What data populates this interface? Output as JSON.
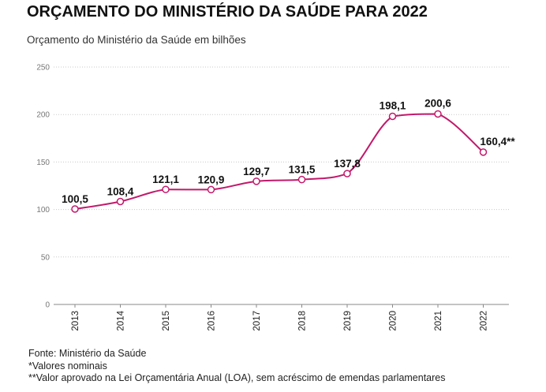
{
  "header": {
    "title": "ORÇAMENTO DO MINISTÉRIO DA SAÚDE PARA 2022",
    "subtitle": "Orçamento do Ministério da Saúde em bilhões"
  },
  "notes": {
    "source": "Fonte: Ministério da Saúde",
    "note1": "*Valores nominais",
    "note2": "**Valor aprovado na Lei Orçamentária Anual (LOA), sem acréscimo de emendas parlamentares"
  },
  "colors": {
    "line": "#c2196b",
    "grid": "#c8c8c8",
    "axis": "#888888"
  },
  "chart_data": {
    "type": "line",
    "title": "ORÇAMENTO DO MINISTÉRIO DA SAÚDE PARA 2022",
    "subtitle": "Orçamento do Ministério da Saúde em bilhões",
    "xlabel": "",
    "ylabel": "",
    "ylim": [
      0,
      250
    ],
    "yticks": [
      0,
      50,
      100,
      150,
      200,
      250
    ],
    "grid": true,
    "categories": [
      "2013",
      "2014",
      "2015",
      "2016",
      "2017",
      "2018",
      "2019",
      "2020",
      "2021",
      "2022"
    ],
    "series": [
      {
        "values": [
          100.5,
          108.4,
          121.1,
          120.9,
          129.7,
          131.5,
          137.8,
          198.1,
          200.6,
          160.4
        ],
        "labels": [
          "100,5",
          "108,4",
          "121,1",
          "120,9",
          "129,7",
          "131,5",
          "137,8",
          "198,1",
          "200,6",
          "160,4**"
        ]
      }
    ]
  }
}
